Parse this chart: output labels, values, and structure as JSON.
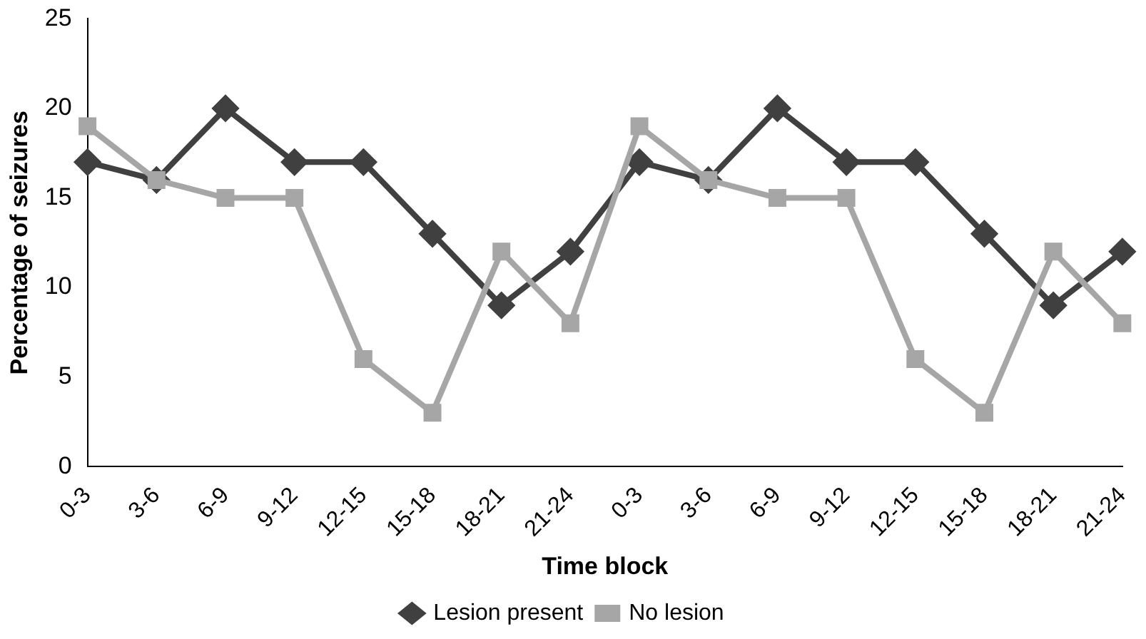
{
  "chart_data": {
    "type": "line",
    "xlabel": "Time block",
    "ylabel": "Percentage of seizures",
    "categories": [
      "0-3",
      "3-6",
      "6-9",
      "9-12",
      "12-15",
      "15-18",
      "18-21",
      "21-24",
      "0-3",
      "3-6",
      "6-9",
      "9-12",
      "12-15",
      "15-18",
      "18-21",
      "21-24"
    ],
    "series": [
      {
        "name": "Lesion present",
        "color": "#404040",
        "marker": "diamond",
        "values": [
          17,
          16,
          20,
          17,
          17,
          13,
          9,
          12,
          17,
          16,
          20,
          17,
          17,
          13,
          9,
          12
        ]
      },
      {
        "name": "No lesion",
        "color": "#a6a6a6",
        "marker": "square",
        "values": [
          19,
          16,
          15,
          15,
          6,
          3,
          12,
          8,
          19,
          16,
          15,
          15,
          6,
          3,
          12,
          8
        ]
      }
    ],
    "ylim": [
      0,
      25
    ],
    "yticks": [
      0,
      5,
      10,
      15,
      20,
      25
    ],
    "grid": false,
    "legend": "bottom"
  }
}
